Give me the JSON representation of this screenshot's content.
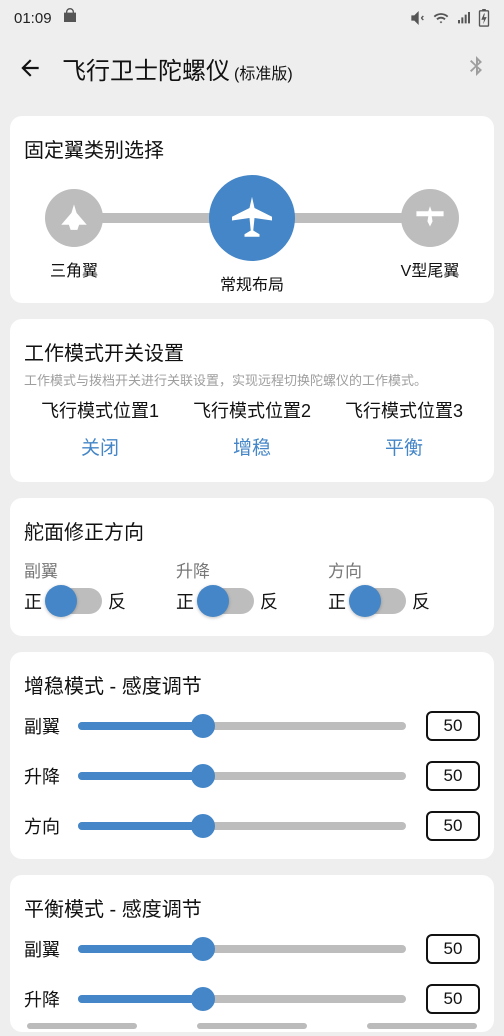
{
  "status": {
    "time": "01:09"
  },
  "header": {
    "title": "飞行卫士陀螺仪",
    "subtitle": "(标准版)"
  },
  "wing": {
    "title": "固定翼类别选择",
    "items": [
      {
        "label": "三角翼",
        "selected": false
      },
      {
        "label": "常规布局",
        "selected": true
      },
      {
        "label": "V型尾翼",
        "selected": false
      }
    ]
  },
  "mode": {
    "title": "工作模式开关设置",
    "sub": "工作模式与拨档开关进行关联设置，实现远程切换陀螺仪的工作模式。",
    "cols": [
      {
        "hdr": "飞行模式位置1",
        "val": "关闭"
      },
      {
        "hdr": "飞行模式位置2",
        "val": "增稳"
      },
      {
        "hdr": "飞行模式位置3",
        "val": "平衡"
      }
    ]
  },
  "dir": {
    "title": "舵面修正方向",
    "labels": {
      "pos": "正",
      "neg": "反"
    },
    "cols": [
      {
        "lbl": "副翼"
      },
      {
        "lbl": "升降"
      },
      {
        "lbl": "方向"
      }
    ]
  },
  "gain1": {
    "title": "增稳模式 - 感度调节",
    "rows": [
      {
        "lbl": "副翼",
        "val": "50",
        "pct": 38
      },
      {
        "lbl": "升降",
        "val": "50",
        "pct": 38
      },
      {
        "lbl": "方向",
        "val": "50",
        "pct": 38
      }
    ]
  },
  "gain2": {
    "title": "平衡模式 - 感度调节",
    "rows": [
      {
        "lbl": "副翼",
        "val": "50",
        "pct": 38
      },
      {
        "lbl": "升降",
        "val": "50",
        "pct": 38
      }
    ]
  },
  "colors": {
    "accent": "#4486c7",
    "grey": "#bdbdbd"
  }
}
